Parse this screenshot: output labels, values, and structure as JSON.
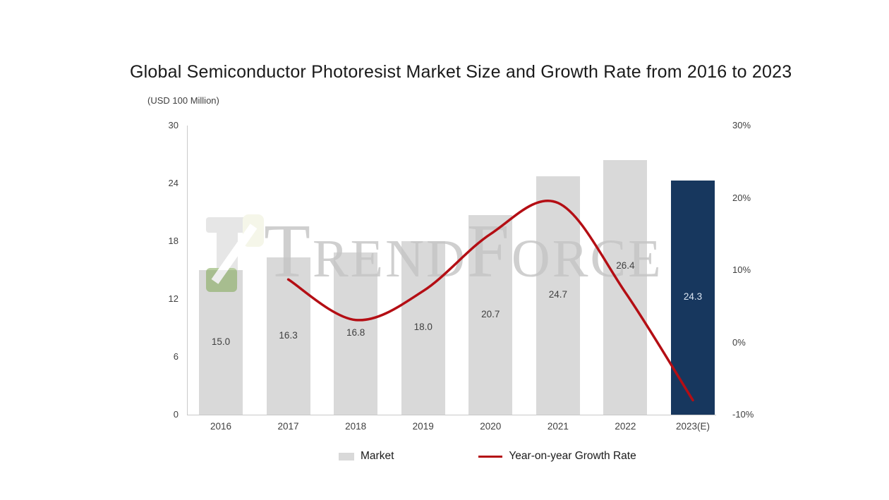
{
  "title": "Global Semiconductor Photoresist Market Size and Growth Rate from 2016 to 2023",
  "unit_label": "(USD 100 Million)",
  "watermark": {
    "text": "TrendForce"
  },
  "chart_data": {
    "type": "bar+line combo",
    "title": "Global Semiconductor Photoresist Market Size and Growth Rate from 2016 to 2023",
    "categories": [
      "2016",
      "2017",
      "2018",
      "2019",
      "2020",
      "2021",
      "2022",
      "2023(E)"
    ],
    "series": [
      {
        "name": "Market",
        "type": "bar",
        "axis": "left",
        "values": [
          15.0,
          16.3,
          16.8,
          18.0,
          20.7,
          24.7,
          26.4,
          24.3
        ],
        "data_labels": [
          "15.0",
          "16.3",
          "16.8",
          "18.0",
          "20.7",
          "24.7",
          "26.4",
          "24.3"
        ]
      },
      {
        "name": "Year-on-year Growth Rate",
        "type": "line",
        "axis": "right",
        "values": [
          null,
          8.7,
          3.1,
          7.1,
          15.0,
          19.3,
          6.9,
          -8.0
        ]
      }
    ],
    "left_axis": {
      "min": 0,
      "max": 30,
      "ticks": [
        0,
        6,
        12,
        18,
        24,
        30
      ],
      "title": "(USD 100 Million)"
    },
    "right_axis": {
      "min": -10,
      "max": 30,
      "ticks": [
        {
          "value": -10,
          "label": "-10%"
        },
        {
          "value": 0,
          "label": "0%"
        },
        {
          "value": 10,
          "label": "10%"
        },
        {
          "value": 20,
          "label": "20%"
        },
        {
          "value": 30,
          "label": "30%"
        }
      ]
    },
    "colors": {
      "bar": "#d9d9d9",
      "highlight_bar": "#17375e",
      "line": "#b40e14",
      "label": "#404040",
      "highlight_label": "#dce6f2"
    },
    "highlight_index": 7,
    "label_dy": [
      0,
      0,
      0,
      0,
      0,
      0,
      -30,
      0
    ],
    "grid": "off",
    "legend_position": "bottom",
    "legend": [
      {
        "label": "Market",
        "swatch": "bar"
      },
      {
        "label": "Year-on-year Growth Rate",
        "swatch": "line"
      }
    ]
  }
}
